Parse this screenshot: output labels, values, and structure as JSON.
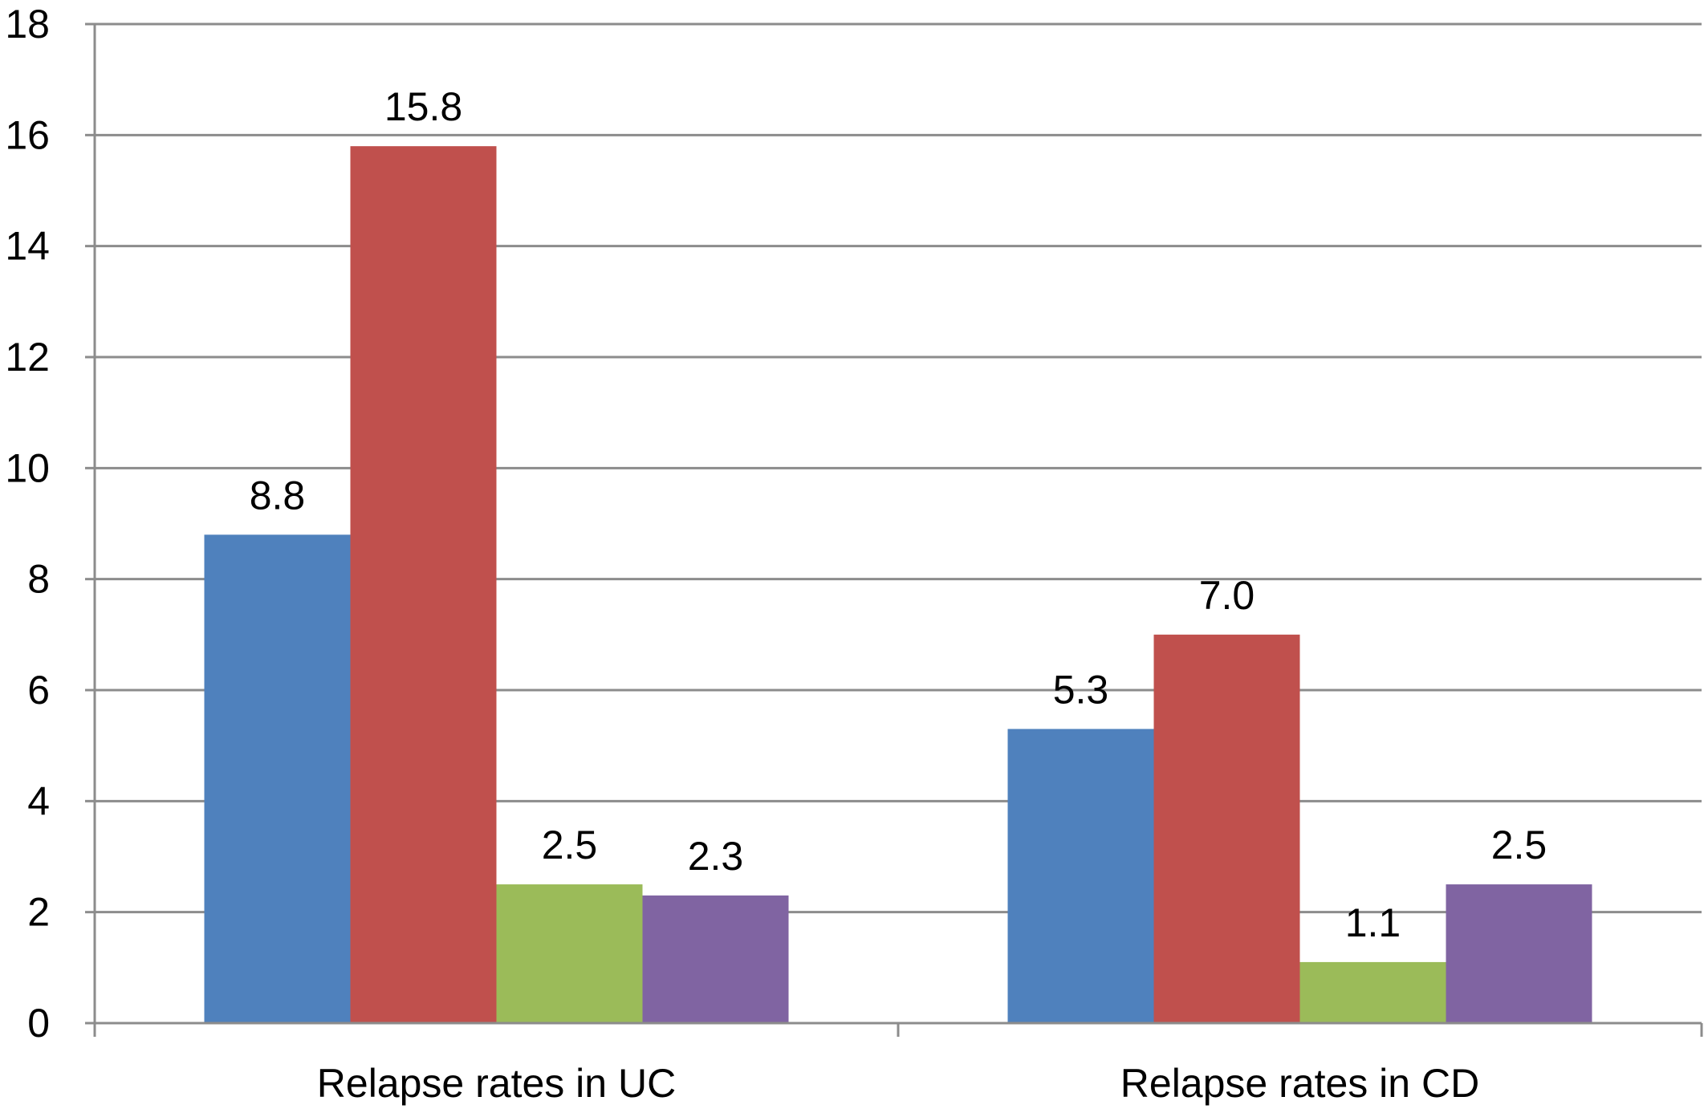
{
  "chart_data": {
    "type": "bar",
    "title": "",
    "xlabel": "",
    "ylabel": "",
    "categories": [
      "Relapse rates in UC",
      "Relapse rates in CD"
    ],
    "series": [
      {
        "color": "#4f81bd",
        "values": [
          8.8,
          5.3
        ],
        "labels": [
          "8.8",
          "5.3"
        ]
      },
      {
        "color": "#c0504d",
        "values": [
          15.8,
          7.0
        ],
        "labels": [
          "15.8",
          "7.0"
        ]
      },
      {
        "color": "#9bbb59",
        "values": [
          2.5,
          1.1
        ],
        "labels": [
          "2.5",
          "1.1"
        ]
      },
      {
        "color": "#8064a2",
        "values": [
          2.3,
          2.5
        ],
        "labels": [
          "2.3",
          "2.5"
        ]
      }
    ],
    "ylim": [
      0,
      18
    ],
    "yticks": [
      "0",
      "2",
      "4",
      "6",
      "8",
      "10",
      "12",
      "14",
      "16",
      "18"
    ],
    "grid": true,
    "legend": "none"
  }
}
